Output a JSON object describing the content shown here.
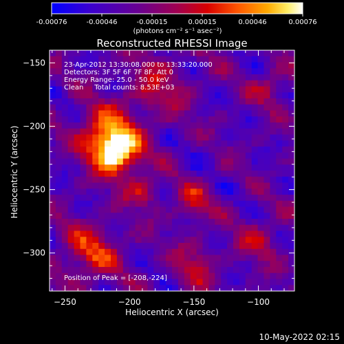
{
  "colorbar": {
    "ticks": [
      "-0.00076",
      "-0.00046",
      "-0.00015",
      "0.00015",
      "0.00046",
      "0.00076"
    ],
    "units": "(photons cm⁻² s⁻¹ asec⁻²)",
    "colors": [
      "#0000ff",
      "#2200c8",
      "#55009a",
      "#8a0050",
      "#c20000",
      "#ff3b00",
      "#ff8a00",
      "#ffd000",
      "#fff7c0",
      "#ffffff"
    ]
  },
  "plot": {
    "title": "Reconstructed RHESSI Image",
    "xlabel": "Heliocentric X (arcsec)",
    "ylabel": "Heliocentric Y (arcsec)",
    "info_lines": [
      "23-Apr-2012 13:30:08.000 to 13:33:20.000",
      "Detectors: 3F 5F 6F 7F 8F, Att 0",
      "Energy Range: 25.0 - 50.0 keV",
      "Clean     Total counts: 8.53E+03"
    ],
    "peak_label": "Position of Peak = [-208,-224]"
  },
  "footer": {
    "timestamp": "10-May-2022 02:15"
  },
  "chart_data": {
    "type": "heatmap",
    "title": "Reconstructed RHESSI Image",
    "xlabel": "Heliocentric X (arcsec)",
    "ylabel": "Heliocentric Y (arcsec)",
    "xlim": [
      -262,
      -72
    ],
    "ylim": [
      -330,
      -140
    ],
    "xticks": [
      -250,
      -200,
      -150,
      -100
    ],
    "yticks": [
      -150,
      -200,
      -250,
      -300
    ],
    "colorbar_range": [
      -0.00076,
      0.00076
    ],
    "colormap": "blue-purple-red-yellow-white",
    "peak": {
      "x": -208,
      "y": -224
    },
    "grid_size": 40,
    "sources": [
      {
        "x": -210,
        "y": -220,
        "sigma": 12,
        "amp": 1.0
      },
      {
        "x": -220,
        "y": -205,
        "sigma": 14,
        "amp": 0.55
      },
      {
        "x": -190,
        "y": -250,
        "sigma": 10,
        "amp": 0.35
      },
      {
        "x": -230,
        "y": -300,
        "sigma": 16,
        "amp": 0.45
      },
      {
        "x": -150,
        "y": -260,
        "sigma": 10,
        "amp": 0.35
      },
      {
        "x": -150,
        "y": -310,
        "sigma": 12,
        "amp": 0.32
      },
      {
        "x": -180,
        "y": -170,
        "sigma": 18,
        "amp": 0.3
      },
      {
        "x": -90,
        "y": -170,
        "sigma": 10,
        "amp": 0.3
      },
      {
        "x": -100,
        "y": -290,
        "sigma": 12,
        "amp": 0.28
      }
    ]
  }
}
